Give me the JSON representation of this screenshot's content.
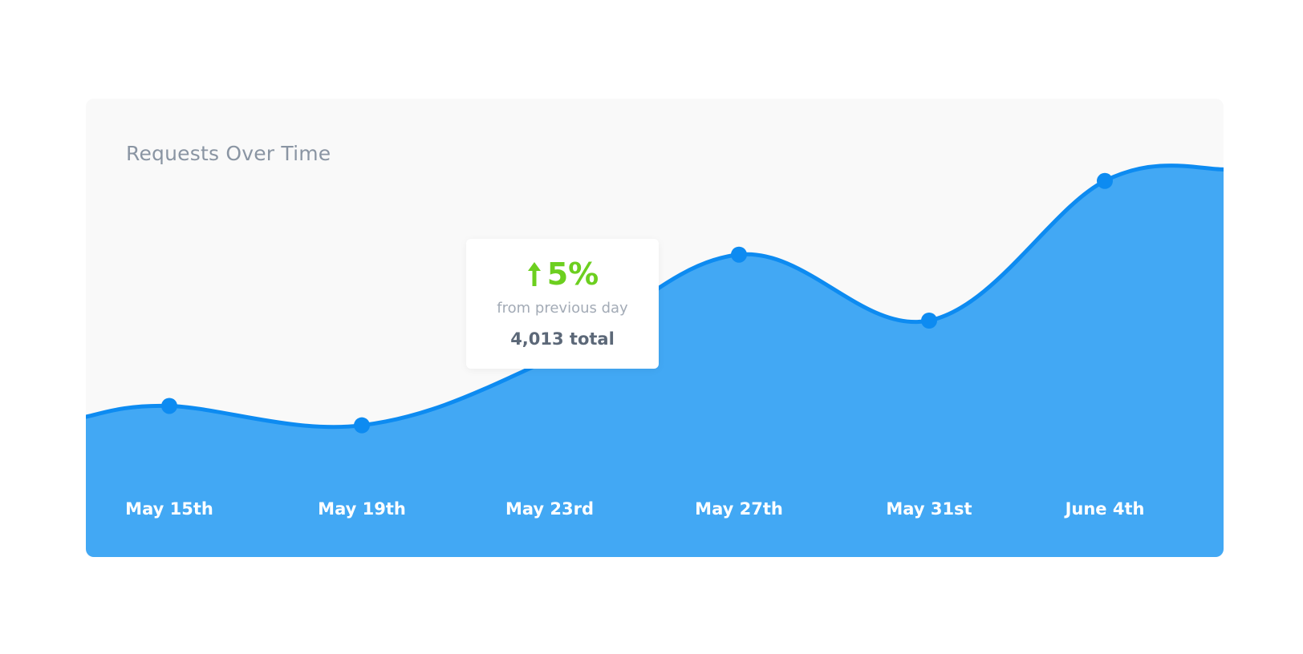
{
  "card": {
    "title": "Requests Over Time"
  },
  "tooltip": {
    "change": "5%",
    "subtitle": "from previous day",
    "total": "4,013 total"
  },
  "colors": {
    "area": "#42a8f4",
    "line": "#0d8bf1",
    "tooltip_change": "#6ccf1f",
    "title": "#8a95a3"
  },
  "chart_data": {
    "type": "area",
    "title": "Requests Over Time",
    "xlabel": "",
    "ylabel": "",
    "categories": [
      "May 15th",
      "May 19th",
      "May 23rd",
      "May 27th",
      "May 31st",
      "June 4th"
    ],
    "values": [
      28,
      23,
      40,
      67,
      50,
      86
    ],
    "highlighted_index": 2,
    "ylim": [
      0,
      100
    ],
    "grid": false,
    "legend": "none"
  }
}
